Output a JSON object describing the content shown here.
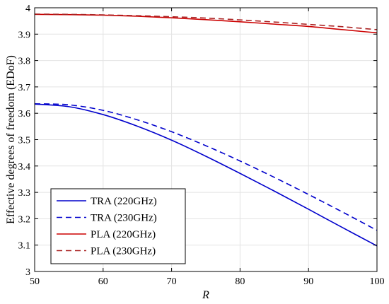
{
  "chart_data": {
    "type": "line",
    "xlabel": "R",
    "ylabel": "Effective degrees of freedom (EDoF)",
    "xlim": [
      50,
      100
    ],
    "ylim": [
      3,
      4
    ],
    "xticks": [
      50,
      60,
      70,
      80,
      90,
      100
    ],
    "yticks": [
      3,
      3.1,
      3.2,
      3.3,
      3.4,
      3.5,
      3.6,
      3.7,
      3.8,
      3.9,
      4
    ],
    "grid": true,
    "legend_position": "bottom-left",
    "x": [
      50,
      55,
      60,
      65,
      70,
      75,
      80,
      85,
      90,
      95,
      100
    ],
    "series": [
      {
        "name": "TRA (220GHz)",
        "color": "#0000cc",
        "dash": "solid",
        "values": [
          3.635,
          3.625,
          3.595,
          3.551,
          3.498,
          3.437,
          3.372,
          3.305,
          3.236,
          3.166,
          3.097
        ]
      },
      {
        "name": "TRA (230GHz)",
        "color": "#0000cc",
        "dash": "dashed",
        "values": [
          3.636,
          3.632,
          3.611,
          3.575,
          3.53,
          3.477,
          3.419,
          3.357,
          3.292,
          3.225,
          3.156
        ]
      },
      {
        "name": "PLA (220GHz)",
        "color": "#cc0000",
        "dash": "solid",
        "values": [
          3.975,
          3.974,
          3.972,
          3.968,
          3.962,
          3.955,
          3.947,
          3.938,
          3.929,
          3.917,
          3.905
        ]
      },
      {
        "name": "PLA (230GHz)",
        "color": "#aa2222",
        "dash": "dashed",
        "values": [
          3.976,
          3.975,
          3.973,
          3.97,
          3.966,
          3.961,
          3.954,
          3.946,
          3.937,
          3.928,
          3.917
        ]
      }
    ]
  }
}
